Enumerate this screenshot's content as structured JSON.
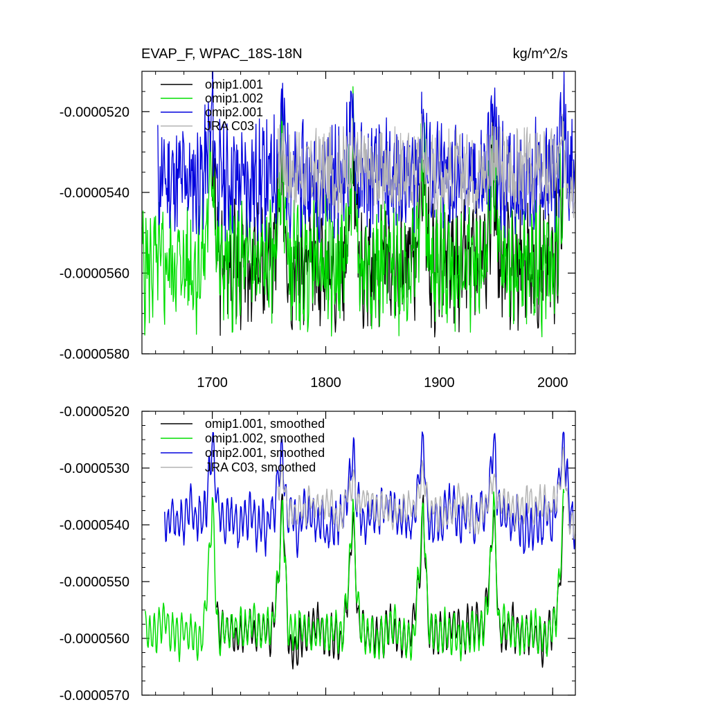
{
  "chart_data": [
    {
      "type": "line",
      "title": "EVAP_F, WPAC_18S-18N",
      "units": "kg/m^2/s",
      "xlim": [
        1638,
        2020
      ],
      "ylim": [
        -5.8e-05,
        -5.1e-05
      ],
      "xticks": [
        1700,
        1800,
        1900,
        2000
      ],
      "xtick_labels": [
        "1700",
        "1800",
        "1900",
        "2000"
      ],
      "yticks": [
        -5.2e-05,
        -5.4e-05,
        -5.6e-05,
        -5.8e-05
      ],
      "ytick_labels": [
        "-0.0000520",
        "-0.0000540",
        "-0.0000560",
        "-0.0000580"
      ],
      "series": [
        {
          "name": "omip1.001",
          "color": "#000000",
          "x_start": 1700,
          "x_end": 2010,
          "base": -5.58e-05,
          "cycle_amp": 6e-07,
          "noise": 1.2e-06,
          "peak": -5.2e-05,
          "seed": 3,
          "wiggle_period": 3.5
        },
        {
          "name": "omip1.002",
          "color": "#00dd00",
          "x_start": 1638,
          "x_end": 2010,
          "base": -5.58e-05,
          "cycle_amp": 6e-07,
          "noise": 1.2e-06,
          "peak": -5.2e-05,
          "seed": 5,
          "wiggle_period": 3.5
        },
        {
          "name": "omip2.001",
          "color": "#0000dd",
          "x_start": 1652,
          "x_end": 2020,
          "base": -5.37e-05,
          "cycle_amp": 4e-07,
          "noise": 1.2e-06,
          "peak": -5.15e-05,
          "seed": 11,
          "wiggle_period": 3.2
        },
        {
          "name": "JRA C03",
          "color": "#b4b4b4",
          "x_start": 1758,
          "x_end": 2020,
          "base": -5.35e-05,
          "cycle_amp": 2e-07,
          "noise": 1e-06,
          "peak": -5.27e-05,
          "seed": 17,
          "wiggle_period": 3.0
        }
      ]
    },
    {
      "type": "line",
      "title": "",
      "xlim": [
        1638,
        2020
      ],
      "ylim": [
        -5.7e-05,
        -5.2e-05
      ],
      "xticks": [
        1700,
        1800,
        1900,
        2000
      ],
      "yticks": [
        -5.2e-05,
        -5.3e-05,
        -5.4e-05,
        -5.5e-05,
        -5.6e-05,
        -5.7e-05
      ],
      "ytick_labels": [
        "-0.0000520",
        "-0.0000530",
        "-0.0000540",
        "-0.0000550",
        "-0.0000560",
        "-0.0000570"
      ],
      "series": [
        {
          "name": "omip1.001, smoothed",
          "color": "#000000",
          "x_start": 1703,
          "x_end": 2010,
          "base": -5.59e-05,
          "cycle_amp": 3e-07,
          "noise": 2e-07,
          "peak": -5.36e-05,
          "seed": 3,
          "wiggle_period": 4.0
        },
        {
          "name": "omip1.002, smoothed",
          "color": "#00dd00",
          "x_start": 1641,
          "x_end": 2010,
          "base": -5.59e-05,
          "cycle_amp": 3e-07,
          "noise": 2e-07,
          "peak": -5.36e-05,
          "seed": 5,
          "wiggle_period": 4.0
        },
        {
          "name": "omip2.001, smoothed",
          "color": "#0000dd",
          "x_start": 1658,
          "x_end": 2020,
          "base": -5.39e-05,
          "cycle_amp": 3e-07,
          "noise": 3e-07,
          "peak": -5.25e-05,
          "seed": 11,
          "wiggle_period": 4.0
        },
        {
          "name": "JRA C03, smoothed",
          "color": "#b4b4b4",
          "x_start": 1758,
          "x_end": 2020,
          "base": -5.37e-05,
          "cycle_amp": 2e-07,
          "noise": 2e-07,
          "peak": -5.3e-05,
          "seed": 17,
          "wiggle_period": 4.0
        }
      ]
    }
  ],
  "cycle": {
    "period_years": 62,
    "peak_years": [
      1700,
      1762,
      1824,
      1886,
      1948,
      2010
    ]
  }
}
